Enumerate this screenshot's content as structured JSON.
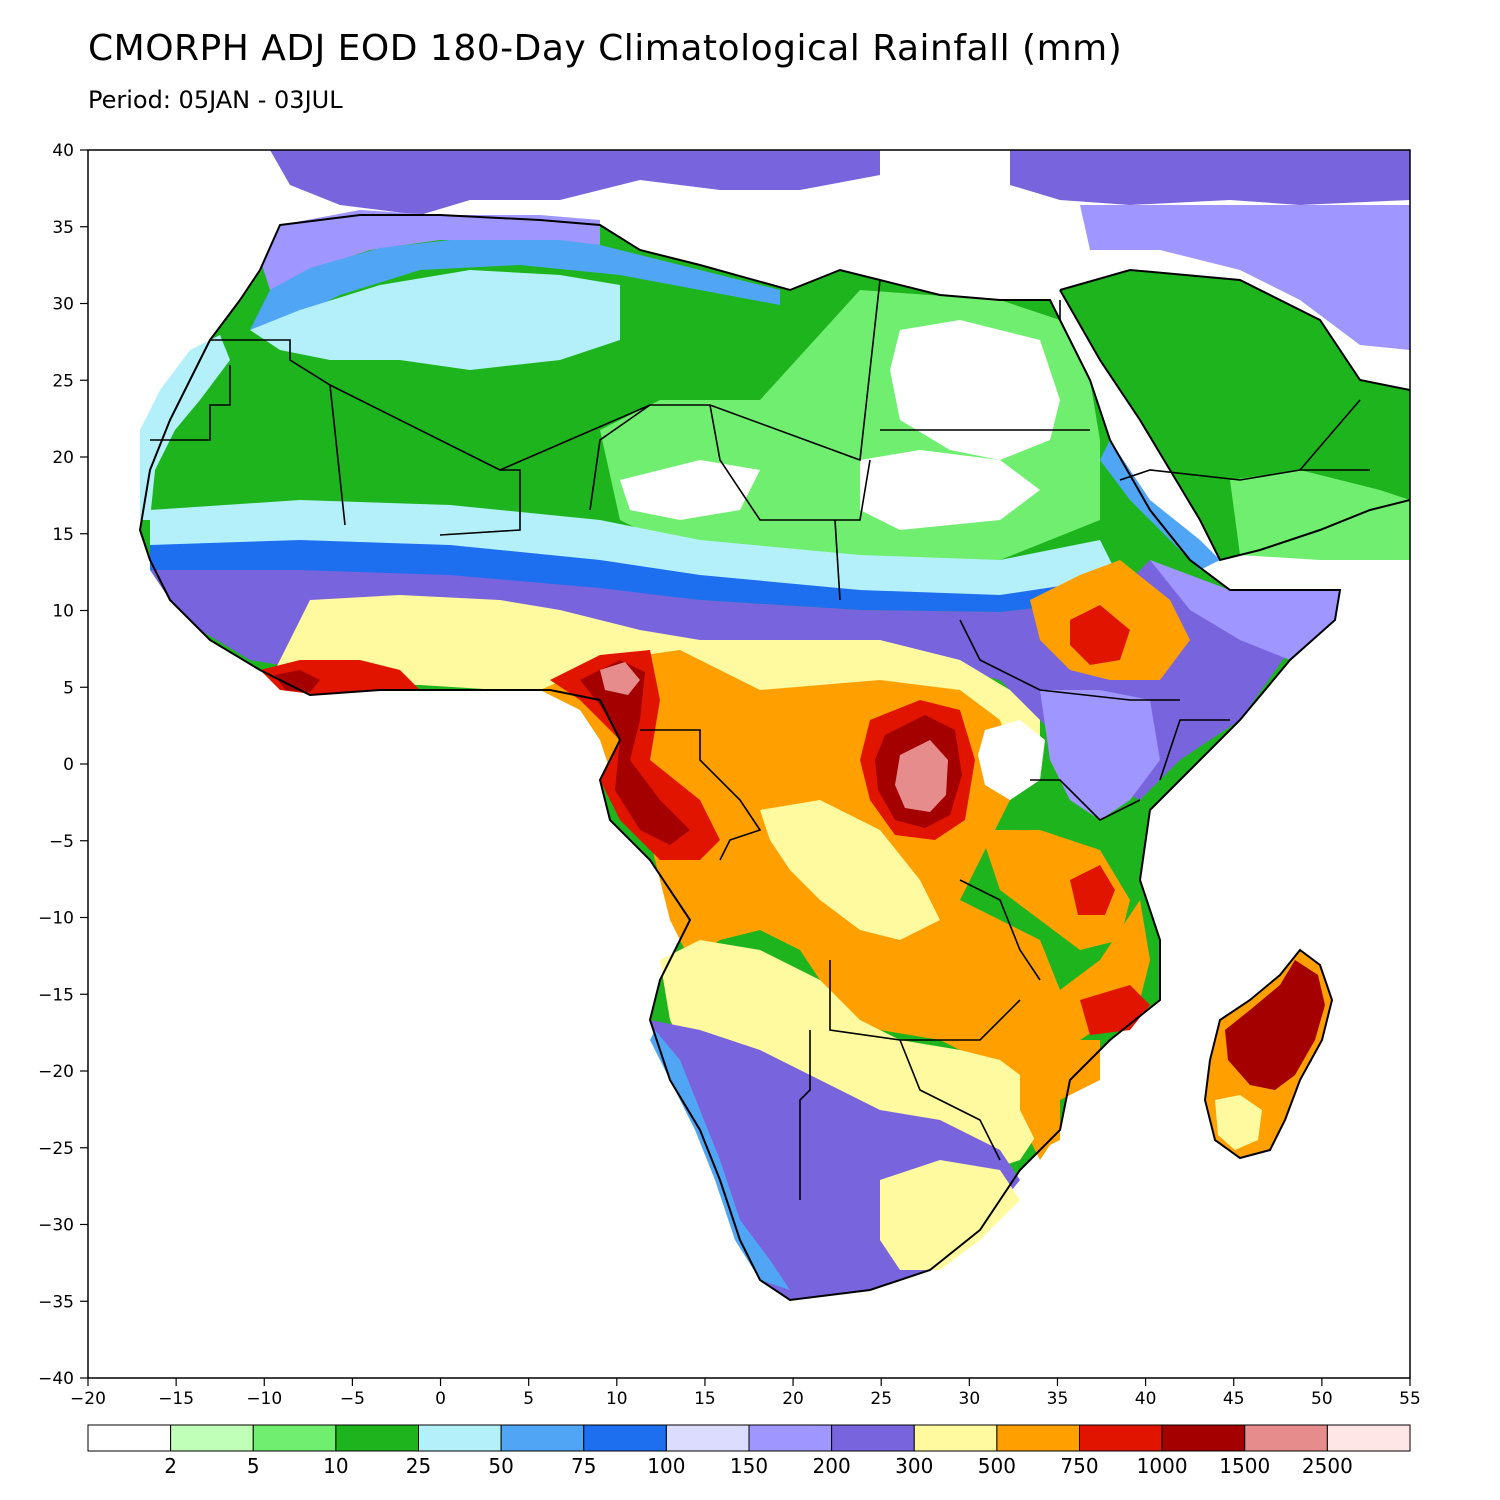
{
  "title": "CMORPH ADJ EOD 180-Day Climatological Rainfall (mm)",
  "subtitle": "Period: 05JAN - 03JUL",
  "axes": {
    "lat_ticks": [
      40,
      35,
      30,
      25,
      20,
      15,
      10,
      5,
      0,
      -5,
      -10,
      -15,
      -20,
      -25,
      -30,
      -35,
      -40
    ],
    "lon_ticks": [
      -20,
      -15,
      -10,
      -5,
      0,
      5,
      10,
      15,
      20,
      25,
      30,
      35,
      40,
      45,
      50,
      55
    ],
    "lat_range": [
      -40,
      40
    ],
    "lon_range": [
      -20,
      55
    ]
  },
  "colorbar": {
    "colors": [
      "#ffffff",
      "#c0ffb8",
      "#70ee70",
      "#1eb41e",
      "#b4f0fa",
      "#50a5f5",
      "#1e6ef0",
      "#dcdcff",
      "#a096ff",
      "#7864dc",
      "#fffaa0",
      "#ffa000",
      "#e11400",
      "#a50000",
      "#e68c8c",
      "#ffe6e6"
    ],
    "labels": [
      "2",
      "5",
      "10",
      "25",
      "50",
      "75",
      "100",
      "150",
      "200",
      "300",
      "500",
      "750",
      "1000",
      "1500",
      "2500"
    ]
  },
  "rain_zones": [
    {
      "name": "sahara-dry",
      "color": "#1eb41e"
    },
    {
      "name": "egypt-libya-minimum",
      "color": "#ffffff"
    },
    {
      "name": "sahel-belt",
      "color": "#7864dc"
    },
    {
      "name": "central-africa-wet",
      "color": "#ffa000"
    },
    {
      "name": "congo-basin-max",
      "color": "#a50000"
    },
    {
      "name": "madagascar-east",
      "color": "#a50000"
    }
  ]
}
